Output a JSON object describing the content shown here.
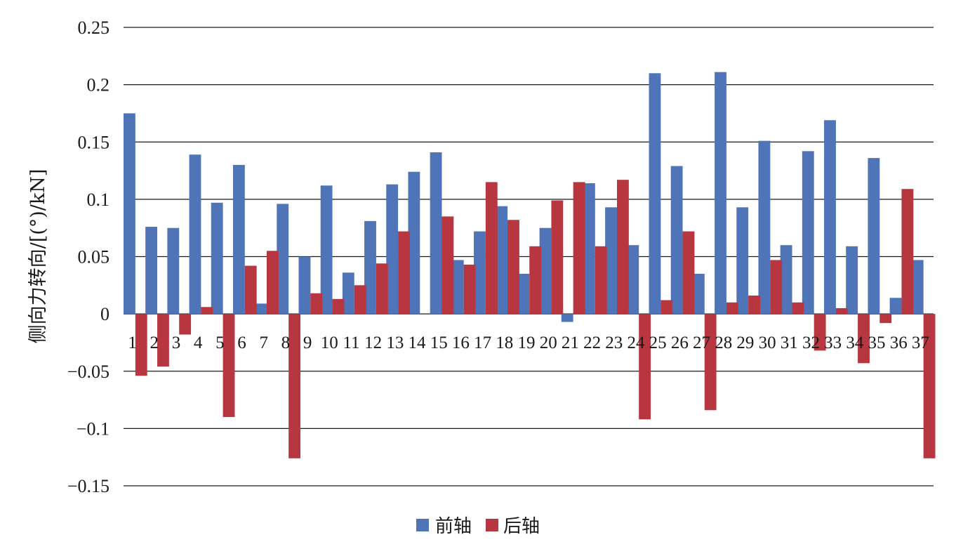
{
  "chart_data": {
    "type": "bar",
    "title": "",
    "xlabel": "",
    "ylabel": "侧向力转向/[(°)/kN]",
    "ylim": [
      -0.15,
      0.25
    ],
    "yticks": [
      {
        "v": 0.25,
        "label": "0.25"
      },
      {
        "v": 0.2,
        "label": "0.2"
      },
      {
        "v": 0.15,
        "label": "0.15"
      },
      {
        "v": 0.1,
        "label": "0.1"
      },
      {
        "v": 0.05,
        "label": "0.05"
      },
      {
        "v": 0,
        "label": "0"
      },
      {
        "v": -0.05,
        "label": "−0.05"
      },
      {
        "v": -0.1,
        "label": "−0.1"
      },
      {
        "v": -0.15,
        "label": "−0.15"
      }
    ],
    "grid": true,
    "legend_position": "bottom",
    "categories": [
      "1",
      "2",
      "3",
      "4",
      "5",
      "6",
      "7",
      "8",
      "9",
      "10",
      "11",
      "12",
      "13",
      "14",
      "15",
      "16",
      "17",
      "18",
      "19",
      "20",
      "21",
      "22",
      "23",
      "24",
      "25",
      "26",
      "27",
      "28",
      "29",
      "30",
      "31",
      "32",
      "33",
      "34",
      "35",
      "36",
      "37"
    ],
    "series": [
      {
        "name": "前轴",
        "color": "#4f74b8",
        "values": [
          0.175,
          0.076,
          0.075,
          0.139,
          0.097,
          0.13,
          0.009,
          0.096,
          0.05,
          0.112,
          0.036,
          0.081,
          0.113,
          0.124,
          0.141,
          0.047,
          0.072,
          0.094,
          0.035,
          0.075,
          -0.007,
          0.114,
          0.093,
          0.06,
          0.21,
          0.129,
          0.035,
          0.211,
          0.093,
          0.151,
          0.06,
          0.142,
          0.169,
          0.059,
          0.136,
          0.014,
          0.047
        ]
      },
      {
        "name": "后轴",
        "color": "#b83640",
        "values": [
          -0.054,
          -0.046,
          -0.018,
          0.006,
          -0.09,
          0.042,
          0.055,
          -0.126,
          0.018,
          0.013,
          0.025,
          0.044,
          0.072,
          0.0,
          0.085,
          0.043,
          0.115,
          0.082,
          0.059,
          0.099,
          0.115,
          0.059,
          0.117,
          -0.092,
          0.012,
          0.072,
          -0.084,
          0.01,
          0.016,
          0.047,
          0.01,
          -0.032,
          0.005,
          -0.043,
          -0.008,
          0.109,
          -0.126
        ]
      }
    ]
  }
}
